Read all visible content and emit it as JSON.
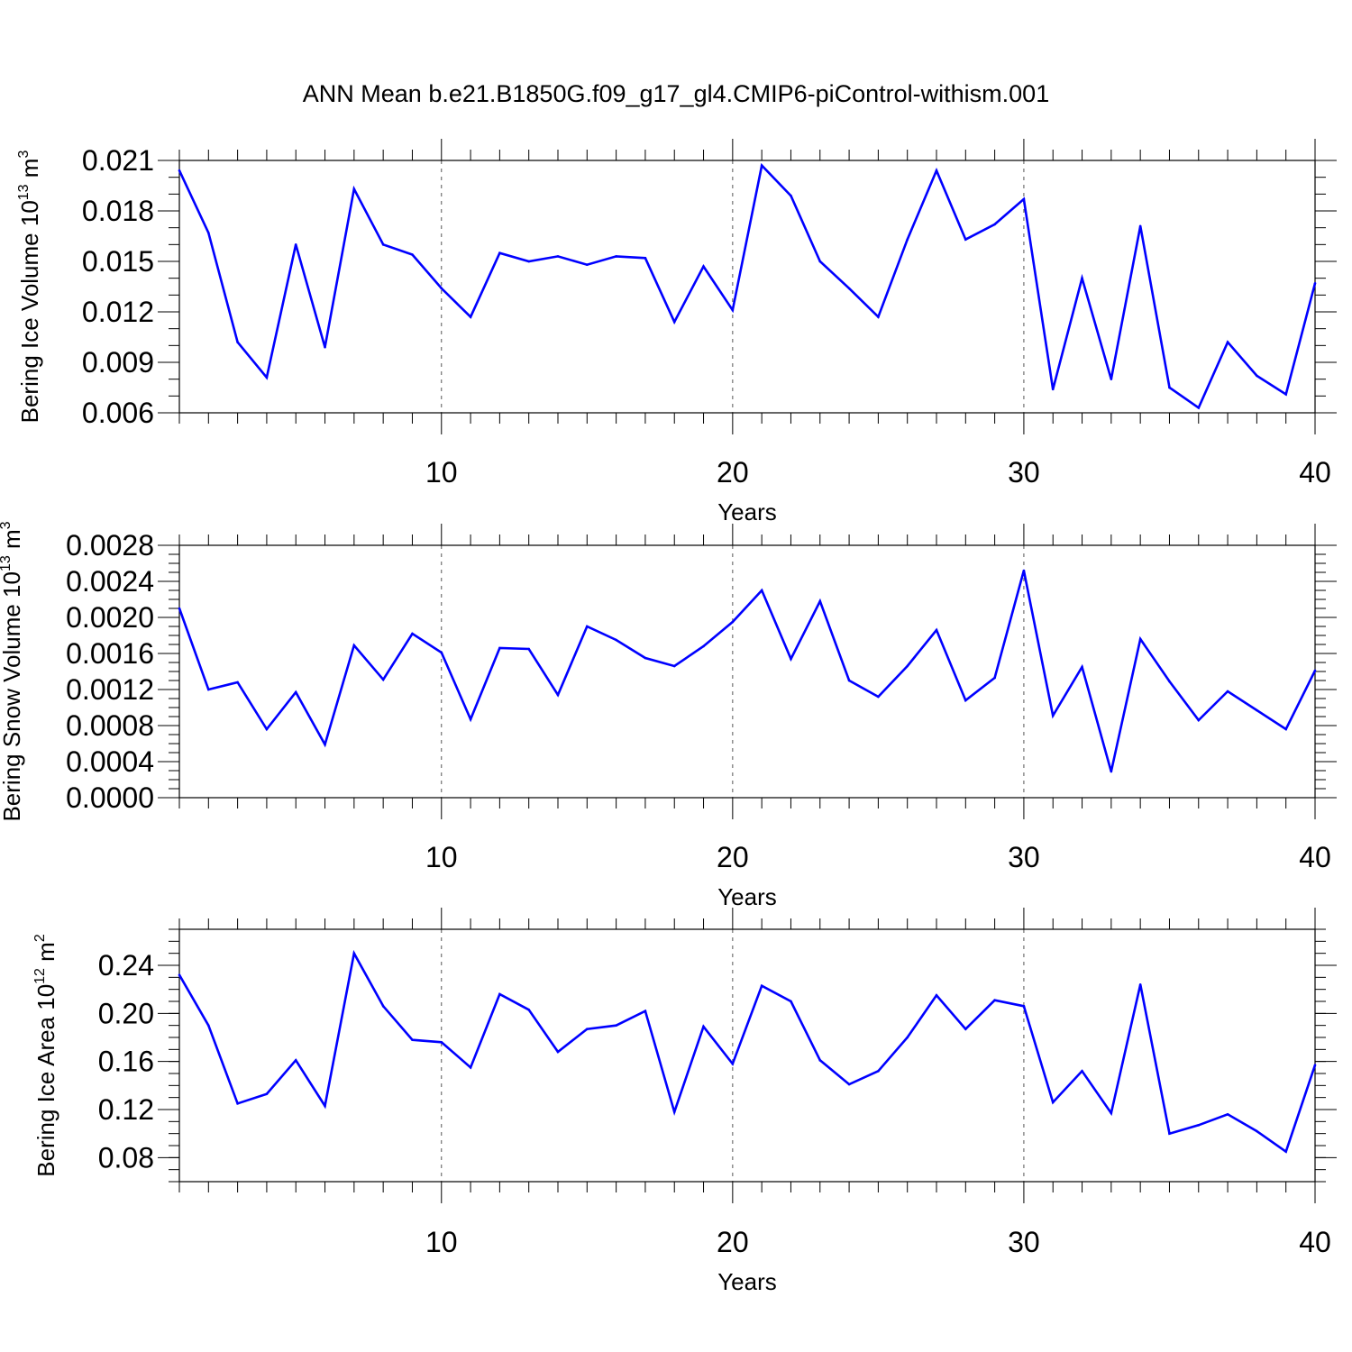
{
  "title": "ANN Mean b.e21.B1850G.f09_g17_gl4.CMIP6-piControl-withism.001",
  "style": {
    "line_color": "#0000ff",
    "axis_color": "#000000",
    "grid_color": "#555555"
  },
  "chart_data": [
    {
      "type": "line",
      "xlabel": "Years",
      "ylabel_parts": [
        "Bering Ice Volume 10",
        "13",
        " m",
        "3"
      ],
      "xlim": [
        1,
        40
      ],
      "ylim": [
        0.006,
        0.021
      ],
      "xticks": [
        10,
        20,
        30,
        40
      ],
      "xtick_labels": [
        "10",
        "20",
        "30",
        "40"
      ],
      "yticks": [
        0.006,
        0.009,
        0.012,
        0.015,
        0.018,
        0.021
      ],
      "ytick_labels": [
        "0.006",
        "0.009",
        "0.012",
        "0.015",
        "0.018",
        "0.021"
      ],
      "y_minor_step": 0.001,
      "grid": "dashed vertical at major x ticks",
      "x": [
        1,
        2,
        3,
        4,
        5,
        6,
        7,
        8,
        9,
        10,
        11,
        12,
        13,
        14,
        15,
        16,
        17,
        18,
        19,
        20,
        21,
        22,
        23,
        24,
        25,
        26,
        27,
        28,
        29,
        30,
        31,
        32,
        33,
        34,
        35,
        36,
        37,
        38,
        39,
        40
      ],
      "series": [
        {
          "values": [
            0.0204,
            0.0167,
            0.0102,
            0.0081,
            0.016,
            0.0099,
            0.0193,
            0.016,
            0.0154,
            0.0134,
            0.0117,
            0.0155,
            0.015,
            0.0153,
            0.0148,
            0.0153,
            0.0152,
            0.0114,
            0.0147,
            0.0121,
            0.0207,
            0.0189,
            0.015,
            0.0134,
            0.0117,
            0.0163,
            0.0204,
            0.0163,
            0.0172,
            0.0187,
            0.0074,
            0.014,
            0.008,
            0.0171,
            0.0075,
            0.0063,
            0.0102,
            0.0082,
            0.0071,
            0.0137
          ]
        }
      ]
    },
    {
      "type": "line",
      "xlabel": "Years",
      "ylabel_parts": [
        "Bering Snow Volume 10",
        "13",
        " m",
        "3"
      ],
      "xlim": [
        1,
        40
      ],
      "ylim": [
        0.0,
        0.0028
      ],
      "xticks": [
        10,
        20,
        30,
        40
      ],
      "xtick_labels": [
        "10",
        "20",
        "30",
        "40"
      ],
      "yticks": [
        0.0,
        0.0004,
        0.0008,
        0.0012,
        0.0016,
        0.002,
        0.0024,
        0.0028
      ],
      "ytick_labels": [
        "0.0000",
        "0.0004",
        "0.0008",
        "0.0012",
        "0.0016",
        "0.0020",
        "0.0024",
        "0.0028"
      ],
      "y_minor_step": 0.0001,
      "grid": "dashed vertical at major x ticks",
      "x": [
        1,
        2,
        3,
        4,
        5,
        6,
        7,
        8,
        9,
        10,
        11,
        12,
        13,
        14,
        15,
        16,
        17,
        18,
        19,
        20,
        21,
        22,
        23,
        24,
        25,
        26,
        27,
        28,
        29,
        30,
        31,
        32,
        33,
        34,
        35,
        36,
        37,
        38,
        39,
        40
      ],
      "series": [
        {
          "values": [
            0.0021,
            0.0012,
            0.00128,
            0.00076,
            0.00117,
            0.00059,
            0.00169,
            0.00131,
            0.00182,
            0.00161,
            0.00087,
            0.00166,
            0.00165,
            0.00114,
            0.0019,
            0.00175,
            0.00155,
            0.00146,
            0.00168,
            0.00195,
            0.0023,
            0.00154,
            0.00218,
            0.0013,
            0.00112,
            0.00146,
            0.00186,
            0.00108,
            0.00133,
            0.00252,
            0.00091,
            0.00145,
            0.00029,
            0.00176,
            0.00129,
            0.00086,
            0.00118,
            0.00097,
            0.00076,
            0.00141
          ]
        }
      ]
    },
    {
      "type": "line",
      "xlabel": "Years",
      "ylabel_parts": [
        "Bering Ice Area 10",
        "12",
        " m",
        "2"
      ],
      "xlim": [
        1,
        40
      ],
      "ylim": [
        0.06,
        0.27
      ],
      "xticks": [
        10,
        20,
        30,
        40
      ],
      "xtick_labels": [
        "10",
        "20",
        "30",
        "40"
      ],
      "yticks": [
        0.08,
        0.12,
        0.16,
        0.2,
        0.24
      ],
      "ytick_labels": [
        "0.08",
        "0.12",
        "0.16",
        "0.20",
        "0.24"
      ],
      "y_minor_step": 0.01,
      "grid": "dashed vertical at major x ticks",
      "x": [
        1,
        2,
        3,
        4,
        5,
        6,
        7,
        8,
        9,
        10,
        11,
        12,
        13,
        14,
        15,
        16,
        17,
        18,
        19,
        20,
        21,
        22,
        23,
        24,
        25,
        26,
        27,
        28,
        29,
        30,
        31,
        32,
        33,
        34,
        35,
        36,
        37,
        38,
        39,
        40
      ],
      "series": [
        {
          "values": [
            0.232,
            0.19,
            0.125,
            0.133,
            0.161,
            0.123,
            0.25,
            0.206,
            0.178,
            0.176,
            0.155,
            0.216,
            0.203,
            0.168,
            0.187,
            0.19,
            0.202,
            0.118,
            0.189,
            0.158,
            0.223,
            0.21,
            0.161,
            0.141,
            0.152,
            0.18,
            0.215,
            0.187,
            0.211,
            0.206,
            0.126,
            0.152,
            0.117,
            0.224,
            0.1,
            0.107,
            0.116,
            0.102,
            0.085,
            0.157
          ]
        }
      ]
    }
  ]
}
